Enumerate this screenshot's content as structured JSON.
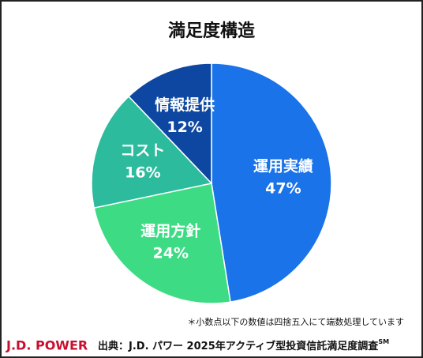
{
  "chart_data": {
    "type": "pie",
    "title": "満足度構造",
    "categories": [
      "運用実績",
      "運用方針",
      "コスト",
      "情報提供"
    ],
    "values": [
      47,
      24,
      16,
      12
    ],
    "value_labels": [
      "47%",
      "24%",
      "16%",
      "12%"
    ],
    "colors": [
      "#1a73e8",
      "#3ddc84",
      "#2cbb9c",
      "#0d47a1"
    ],
    "footnote": "＊小数点以下の数値は四捨五入にて端数処理しています",
    "logo": "J.D. POWER",
    "source": "出典：J.D. パワー 2025年アクティブ型投資信託満足度調査",
    "source_mark": "SM"
  }
}
